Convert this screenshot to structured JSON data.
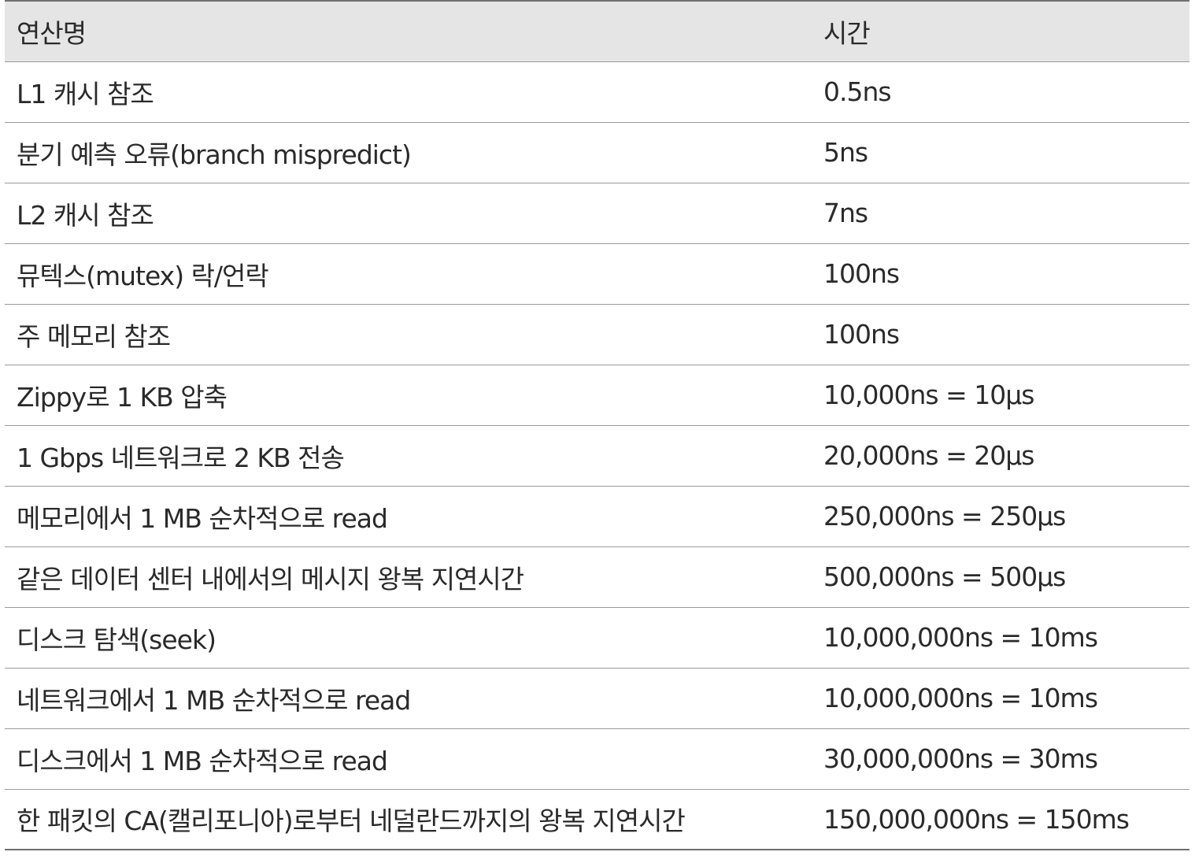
{
  "table": {
    "headers": [
      "연산명",
      "시간"
    ],
    "rows": [
      {
        "op": "L1 캐시 참조",
        "time": "0.5ns"
      },
      {
        "op": "분기 예측 오류(branch mispredict)",
        "time": "5ns"
      },
      {
        "op": "L2 캐시 참조",
        "time": "7ns"
      },
      {
        "op": "뮤텍스(mutex) 락/언락",
        "time": "100ns"
      },
      {
        "op": "주 메모리 참조",
        "time": "100ns"
      },
      {
        "op": "Zippy로 1 KB 압축",
        "time": "10,000ns = 10µs"
      },
      {
        "op": "1 Gbps 네트워크로 2 KB 전송",
        "time": "20,000ns = 20µs"
      },
      {
        "op": "메모리에서 1 MB 순차적으로 read",
        "time": "250,000ns = 250µs"
      },
      {
        "op": "같은 데이터 센터 내에서의 메시지 왕복 지연시간",
        "time": "500,000ns = 500µs"
      },
      {
        "op": "디스크 탐색(seek)",
        "time": "10,000,000ns = 10ms"
      },
      {
        "op": "네트워크에서 1 MB 순차적으로 read",
        "time": "10,000,000ns = 10ms"
      },
      {
        "op": "디스크에서 1 MB 순차적으로 read",
        "time": "30,000,000ns = 30ms"
      },
      {
        "op": "한 패킷의 CA(캘리포니아)로부터 네덜란드까지의 왕복 지연시간",
        "time": "150,000,000ns = 150ms"
      }
    ]
  }
}
